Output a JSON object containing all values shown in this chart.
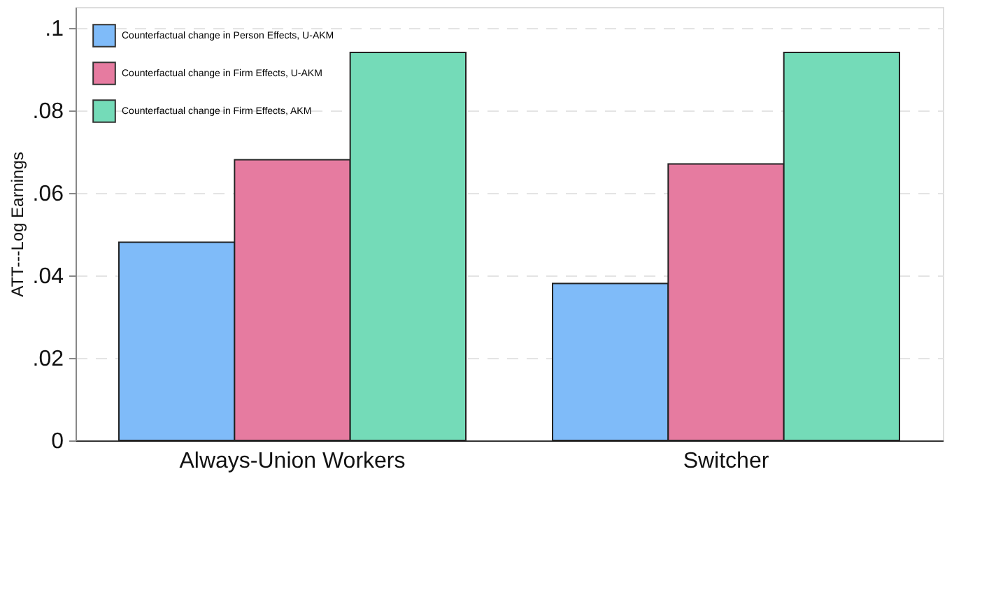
{
  "chart_data": {
    "type": "bar",
    "ylabel": "ATT---Log Earnings",
    "categories": [
      "Always-Union Workers",
      "Switcher"
    ],
    "series": [
      {
        "name": "Counterfactual change in Person Effects, U-AKM",
        "color": "#7fbbf9",
        "values": [
          0.048,
          0.038
        ]
      },
      {
        "name": "Counterfactual change in Firm Effects, U-AKM",
        "color": "#e67ba0",
        "values": [
          0.068,
          0.067
        ]
      },
      {
        "name": "Counterfactual change in Firm Effects, AKM",
        "color": "#74dbb8",
        "values": [
          0.094,
          0.094
        ]
      }
    ],
    "ylim": [
      0,
      0.105
    ],
    "yticks": [
      0,
      {
        "value": 0.02,
        "label": ".02"
      },
      {
        "value": 0.04,
        "label": ".04"
      },
      {
        "value": 0.06,
        "label": ".06"
      },
      {
        "value": 0.08,
        "label": ".08"
      },
      {
        "value": 0.1,
        "label": ".1"
      }
    ],
    "grid": "y",
    "legend": "top left"
  }
}
